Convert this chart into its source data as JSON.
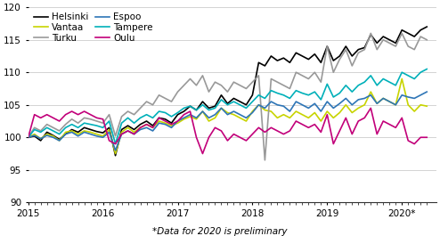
{
  "footnote": "*Data for 2020 is preliminary",
  "ylim": [
    90,
    120
  ],
  "yticks": [
    90,
    95,
    100,
    105,
    110,
    115,
    120
  ],
  "xlim_start": 2015.0,
  "xlim_end": 2020.46,
  "xtick_labels": [
    "2015",
    "2016",
    "2017",
    "2018",
    "2019",
    "2020*"
  ],
  "xtick_positions": [
    2015,
    2016,
    2017,
    2018,
    2019,
    2020
  ],
  "colors": {
    "Helsinki": "#000000",
    "Espoo": "#2e75b6",
    "Vantaa": "#c8d400",
    "Tampere": "#00b0b9",
    "Turku": "#999999",
    "Oulu": "#c2007a"
  },
  "linewidth": 1.2,
  "legend_fontsize": 7.5,
  "tick_fontsize": 7.5,
  "footnote_fontsize": 7.5,
  "legend_col1": [
    "Helsinki",
    "Vantaa",
    "Turku"
  ],
  "legend_col2": [
    "Espoo",
    "Tampere",
    "Oulu"
  ],
  "Helsinki": [
    100.0,
    100.2,
    99.5,
    100.8,
    100.3,
    99.7,
    100.5,
    101.2,
    100.8,
    101.5,
    101.2,
    100.9,
    100.7,
    101.5,
    97.2,
    101.2,
    101.8,
    101.2,
    102.0,
    102.5,
    101.8,
    103.0,
    102.8,
    102.2,
    103.5,
    104.0,
    104.8,
    104.2,
    105.5,
    104.5,
    104.8,
    106.5,
    105.2,
    106.0,
    105.5,
    105.0,
    106.5,
    111.5,
    111.0,
    112.5,
    111.8,
    112.2,
    111.5,
    113.0,
    112.5,
    112.0,
    112.8,
    111.5,
    114.0,
    111.8,
    112.5,
    114.0,
    112.5,
    113.5,
    113.8,
    115.8,
    114.5,
    115.5,
    115.0,
    114.5,
    116.5,
    116.0,
    115.5,
    116.5,
    117.0
  ],
  "Espoo": [
    100.0,
    100.3,
    99.8,
    100.3,
    100.0,
    99.5,
    100.5,
    100.8,
    100.2,
    100.8,
    100.5,
    100.2,
    100.0,
    100.8,
    98.0,
    100.5,
    101.0,
    100.5,
    101.2,
    101.5,
    101.0,
    102.2,
    102.0,
    101.5,
    102.5,
    103.0,
    103.5,
    103.0,
    104.0,
    103.0,
    103.5,
    104.5,
    103.5,
    104.0,
    103.5,
    103.0,
    103.8,
    105.0,
    104.5,
    105.5,
    105.0,
    104.8,
    104.0,
    105.5,
    105.0,
    104.5,
    105.2,
    104.0,
    105.5,
    104.5,
    105.2,
    106.0,
    105.0,
    105.8,
    106.0,
    106.5,
    105.2,
    106.0,
    105.5,
    105.0,
    106.5,
    106.2,
    106.0,
    106.5,
    107.0
  ],
  "Vantaa": [
    100.0,
    100.5,
    99.8,
    100.5,
    100.2,
    99.5,
    100.8,
    101.0,
    100.5,
    101.0,
    100.8,
    100.5,
    100.2,
    101.2,
    97.5,
    100.8,
    101.5,
    100.8,
    101.5,
    102.0,
    101.5,
    102.5,
    102.2,
    101.8,
    102.2,
    102.8,
    103.2,
    102.8,
    104.0,
    102.5,
    103.0,
    104.5,
    103.8,
    103.5,
    103.0,
    102.5,
    104.0,
    105.0,
    104.2,
    104.0,
    103.0,
    103.5,
    103.0,
    104.0,
    103.5,
    103.0,
    103.8,
    102.5,
    104.0,
    103.0,
    103.8,
    105.0,
    103.8,
    104.5,
    105.0,
    107.0,
    105.2,
    106.0,
    105.5,
    105.0,
    109.0,
    105.0,
    104.0,
    105.0,
    104.8
  ],
  "Tampere": [
    100.0,
    101.2,
    100.8,
    101.5,
    101.0,
    100.5,
    101.5,
    102.0,
    101.5,
    102.2,
    102.0,
    101.8,
    101.5,
    102.5,
    99.0,
    102.2,
    103.0,
    102.2,
    103.0,
    103.5,
    103.0,
    104.0,
    103.8,
    103.2,
    103.8,
    104.5,
    104.8,
    104.2,
    105.0,
    104.2,
    104.5,
    105.8,
    105.0,
    105.5,
    105.0,
    104.5,
    105.5,
    106.5,
    106.0,
    107.2,
    106.8,
    106.5,
    106.0,
    107.2,
    106.8,
    106.5,
    107.0,
    105.8,
    108.2,
    106.2,
    106.8,
    108.0,
    107.0,
    108.0,
    108.5,
    109.5,
    108.0,
    109.0,
    108.5,
    108.0,
    110.0,
    109.5,
    109.0,
    110.0,
    110.5
  ],
  "Turku": [
    100.0,
    101.5,
    101.0,
    102.0,
    101.5,
    101.0,
    102.0,
    102.8,
    102.2,
    103.0,
    102.8,
    102.5,
    102.2,
    103.5,
    100.2,
    103.2,
    104.0,
    103.5,
    104.5,
    105.5,
    105.0,
    106.5,
    106.0,
    105.5,
    107.0,
    108.0,
    109.0,
    108.0,
    109.5,
    107.0,
    108.5,
    108.0,
    107.0,
    108.5,
    108.0,
    107.5,
    108.5,
    109.5,
    96.5,
    109.0,
    108.5,
    108.0,
    107.5,
    110.0,
    109.5,
    109.0,
    110.0,
    108.5,
    114.0,
    110.0,
    112.0,
    113.5,
    111.0,
    113.0,
    113.5,
    116.0,
    113.5,
    115.0,
    114.5,
    114.0,
    116.0,
    114.0,
    113.5,
    115.5,
    115.0
  ],
  "Oulu": [
    100.0,
    103.5,
    103.0,
    103.5,
    103.0,
    102.5,
    103.5,
    104.0,
    103.5,
    104.0,
    103.5,
    103.0,
    102.8,
    99.5,
    99.0,
    100.5,
    101.0,
    100.5,
    101.5,
    102.0,
    101.5,
    103.0,
    102.5,
    102.0,
    102.5,
    103.5,
    104.0,
    100.0,
    97.5,
    100.0,
    101.5,
    101.0,
    99.5,
    100.5,
    100.0,
    99.5,
    100.5,
    101.5,
    100.8,
    101.5,
    101.0,
    100.5,
    101.0,
    102.5,
    102.0,
    101.5,
    102.0,
    100.8,
    103.5,
    99.0,
    101.0,
    103.0,
    100.5,
    102.5,
    103.0,
    104.5,
    100.5,
    102.5,
    102.0,
    101.5,
    103.0,
    99.5,
    99.0,
    100.0,
    100.0
  ]
}
